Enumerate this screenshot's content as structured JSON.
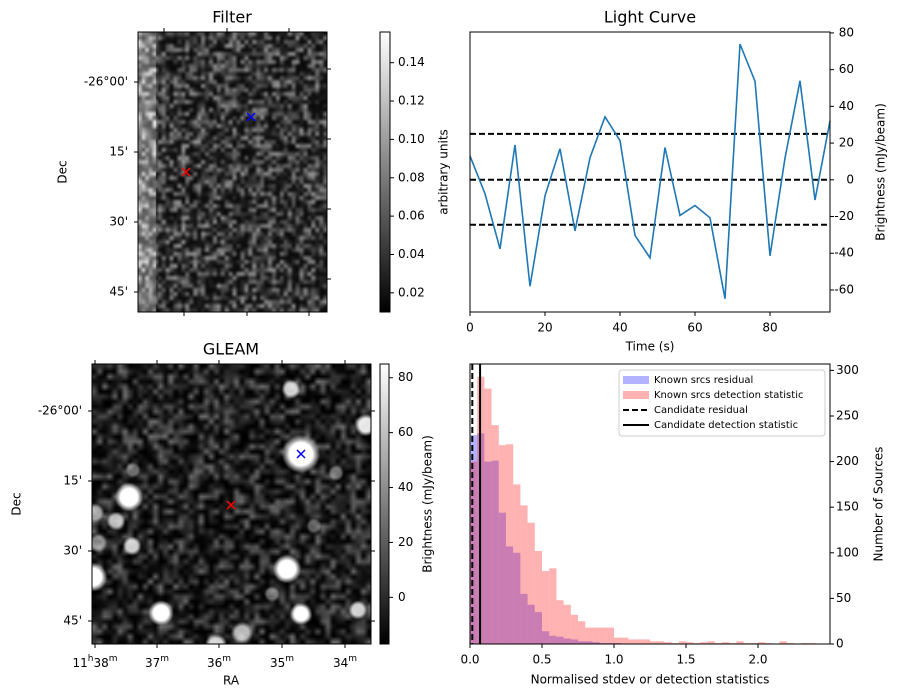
{
  "chart_data": [
    {
      "type": "heatmap",
      "title": "Filter",
      "ylabel": "Dec",
      "yticks": [
        "-26°00'",
        "15'",
        "30'",
        "45'"
      ],
      "colorbar": {
        "label": "arbitrary units",
        "ticks": [
          "0.02",
          "0.04",
          "0.06",
          "0.08",
          "0.10",
          "0.12",
          "0.14"
        ],
        "range": [
          0.01,
          0.156
        ]
      },
      "markers": [
        {
          "color": "#ff0000",
          "symbol": "x",
          "label": "candidate"
        },
        {
          "color": "#0000ff",
          "symbol": "x",
          "label": "known source"
        }
      ]
    },
    {
      "type": "line",
      "title": "Light Curve",
      "xlabel": "Time (s)",
      "ylabel": "Brightness (mJy/beam)",
      "xlim": [
        0,
        96
      ],
      "ylim": [
        -72,
        80.5
      ],
      "xticks": [
        0,
        20,
        40,
        60,
        80
      ],
      "yticks": [
        -60,
        -40,
        -20,
        0,
        20,
        40,
        60,
        80
      ],
      "series": [
        {
          "name": "light curve",
          "color": "#1f77b4",
          "x": [
            0,
            4,
            8,
            12,
            16,
            20,
            24,
            28,
            32,
            36,
            40,
            44,
            48,
            52,
            56,
            60,
            64,
            68,
            72,
            76,
            80,
            84,
            88,
            92,
            96
          ],
          "y": [
            13,
            -7.6,
            -37.6,
            19,
            -58,
            -8.7,
            16.9,
            -27.8,
            12,
            34.3,
            21.4,
            -30.3,
            -42.5,
            17.6,
            -19.4,
            -14,
            -20.7,
            -64.8,
            73.9,
            53.7,
            -41.4,
            11.8,
            53.9,
            -11,
            32.1
          ]
        }
      ],
      "hlines": [
        {
          "y": 25,
          "style": "dashed"
        },
        {
          "y": 0,
          "style": "dashed"
        },
        {
          "y": -24.5,
          "style": "dashed"
        }
      ]
    },
    {
      "type": "heatmap",
      "title": "GLEAM",
      "xlabel": "RA",
      "ylabel": "Dec",
      "yticks": [
        "-26°00'",
        "15'",
        "30'",
        "45'"
      ],
      "xticks": [
        {
          "main": "11",
          "sup1": "h",
          "mid": "38",
          "sup2": "m"
        },
        {
          "main": "",
          "sup1": "",
          "mid": "37",
          "sup2": "m"
        },
        {
          "main": "",
          "sup1": "",
          "mid": "36",
          "sup2": "m"
        },
        {
          "main": "",
          "sup1": "",
          "mid": "35",
          "sup2": "m"
        },
        {
          "main": "",
          "sup1": "",
          "mid": "34",
          "sup2": "m"
        }
      ],
      "colorbar": {
        "label": "Brightness (mJy/beam)",
        "ticks": [
          "0",
          "20",
          "40",
          "60",
          "80"
        ],
        "range": [
          -17,
          85
        ]
      },
      "markers": [
        {
          "color": "#ff0000",
          "symbol": "x",
          "label": "candidate"
        },
        {
          "color": "#0000ff",
          "symbol": "x",
          "label": "known source"
        }
      ]
    },
    {
      "type": "bar",
      "subtype": "histogram",
      "xlabel": "Normalised stdev or detection statistics",
      "ylabel": "Number of Sources",
      "xlim": [
        0,
        2.5
      ],
      "ylim": [
        0,
        307
      ],
      "xticks": [
        "0.0",
        "0.5",
        "1.0",
        "1.5",
        "2.0"
      ],
      "yticks": [
        "0",
        "50",
        "100",
        "150",
        "200",
        "250",
        "300"
      ],
      "bin_width": 0.05,
      "series": [
        {
          "name": "Known srcs residual",
          "color": "#0000ff",
          "alpha": 0.3,
          "values": [
            229,
            231,
            200,
            201,
            144,
            107,
            100,
            55,
            43,
            35,
            14,
            9,
            8,
            6,
            5,
            3,
            3,
            2,
            1,
            1,
            1,
            0,
            0,
            0,
            0,
            0,
            0,
            0,
            0,
            0,
            0,
            0,
            0,
            0,
            0,
            0,
            0,
            0,
            0,
            0,
            0,
            0,
            0,
            0,
            0,
            0,
            0,
            0,
            0
          ]
        },
        {
          "name": "Known srcs detection statistic",
          "color": "#ff0000",
          "alpha": 0.3,
          "values": [
            200,
            293,
            280,
            240,
            218,
            219,
            175,
            152,
            133,
            102,
            80,
            83,
            48,
            43,
            32,
            25,
            18,
            18,
            18,
            18,
            7,
            7,
            5,
            5,
            5,
            3,
            3,
            2,
            1,
            3,
            2,
            1,
            2,
            3,
            1,
            2,
            1,
            3,
            1,
            1,
            2,
            1,
            0,
            3,
            1,
            0,
            1,
            1,
            0
          ]
        }
      ],
      "vlines": [
        {
          "name": "Candidate residual",
          "x": 0.016,
          "style": "dashed"
        },
        {
          "name": "Candidate detection statistic",
          "x": 0.07,
          "style": "solid"
        }
      ],
      "legend_position": "top-right"
    }
  ]
}
